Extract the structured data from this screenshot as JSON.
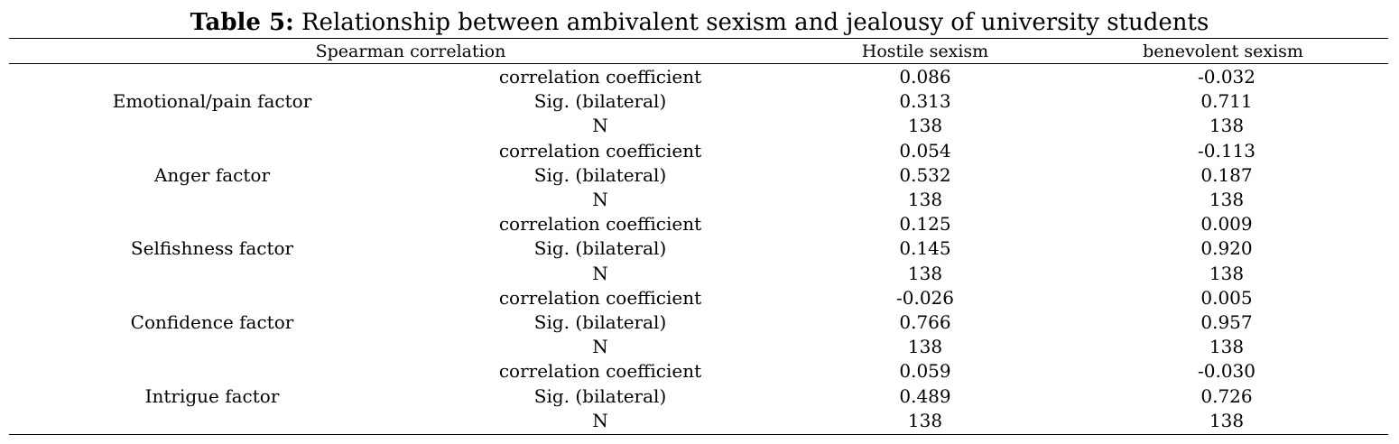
{
  "caption": {
    "label": "Table 5:",
    "text": " Relationship between ambivalent sexism and jealousy of university students"
  },
  "header": {
    "spearman": "Spearman correlation",
    "hostile": "Hostile sexism",
    "benevolent": "benevolent sexism"
  },
  "groups": [
    {
      "factor": "Emotional/pain factor",
      "rows": [
        {
          "stat": "correlation coefficient",
          "hostile": "0.086",
          "benevolent": "-0.032"
        },
        {
          "stat": "Sig. (bilateral)",
          "hostile": "0.313",
          "benevolent": "0.711"
        },
        {
          "stat": "N",
          "hostile": "138",
          "benevolent": "138"
        }
      ]
    },
    {
      "factor": "Anger factor",
      "rows": [
        {
          "stat": "correlation coefficient",
          "hostile": "0.054",
          "benevolent": "-0.113"
        },
        {
          "stat": "Sig. (bilateral)",
          "hostile": "0.532",
          "benevolent": "0.187"
        },
        {
          "stat": "N",
          "hostile": "138",
          "benevolent": "138"
        }
      ]
    },
    {
      "factor": "Selfishness factor",
      "rows": [
        {
          "stat": "correlation coefficient",
          "hostile": "0.125",
          "benevolent": "0.009"
        },
        {
          "stat": "Sig. (bilateral)",
          "hostile": "0.145",
          "benevolent": "0.920"
        },
        {
          "stat": "N",
          "hostile": "138",
          "benevolent": "138"
        }
      ]
    },
    {
      "factor": "Confidence factor",
      "rows": [
        {
          "stat": "correlation coefficient",
          "hostile": "-0.026",
          "benevolent": "0.005"
        },
        {
          "stat": "Sig. (bilateral)",
          "hostile": "0.766",
          "benevolent": "0.957"
        },
        {
          "stat": "N",
          "hostile": "138",
          "benevolent": "138"
        }
      ]
    },
    {
      "factor": "Intrigue factor",
      "rows": [
        {
          "stat": "correlation coefficient",
          "hostile": "0.059",
          "benevolent": "-0.030"
        },
        {
          "stat": "Sig. (bilateral)",
          "hostile": "0.489",
          "benevolent": "0.726"
        },
        {
          "stat": "N",
          "hostile": "138",
          "benevolent": "138"
        }
      ]
    }
  ]
}
